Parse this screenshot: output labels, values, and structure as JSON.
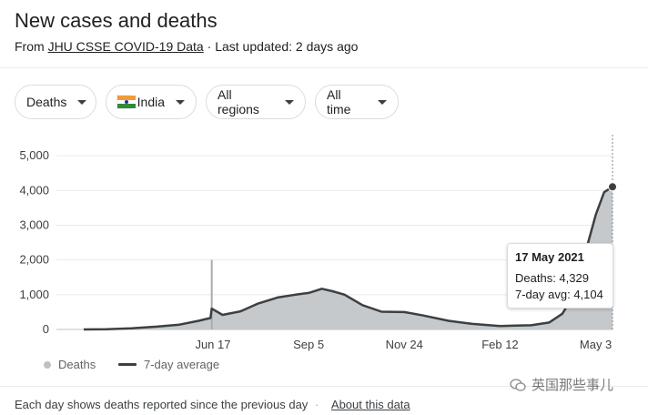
{
  "header": {
    "title": "New cases and deaths",
    "source_prefix": "From",
    "source_link": "JHU CSSE COVID-19 Data",
    "separator": "·",
    "last_updated": "Last updated: 2 days ago"
  },
  "filters": {
    "metric": "Deaths",
    "country": "India",
    "region": "All regions",
    "time_range": "All time"
  },
  "chart_data": {
    "type": "bar",
    "title": "",
    "xlabel": "",
    "ylabel": "",
    "ylim": [
      0,
      5500
    ],
    "y_ticks": [
      0,
      1000,
      2000,
      3000,
      4000,
      5000
    ],
    "y_tick_labels": [
      "0",
      "1,000",
      "2,000",
      "3,000",
      "4,000",
      "5,000"
    ],
    "x_tick_labels": [
      "Jun 17",
      "Sep 5",
      "Nov 24",
      "Feb 12",
      "May 3"
    ],
    "x_ticks": [
      "2020-06-17",
      "2020-09-05",
      "2020-11-24",
      "2021-02-12",
      "2021-05-03"
    ],
    "x_range": [
      "2020-03-01",
      "2021-05-17"
    ],
    "grid": true,
    "series": [
      {
        "name": "7-day average",
        "x": [
          "2020-03-01",
          "2020-03-20",
          "2020-04-10",
          "2020-05-01",
          "2020-05-20",
          "2020-06-05",
          "2020-06-15",
          "2020-06-16",
          "2020-06-25",
          "2020-07-10",
          "2020-07-25",
          "2020-08-10",
          "2020-08-25",
          "2020-09-05",
          "2020-09-16",
          "2020-09-25",
          "2020-10-05",
          "2020-10-20",
          "2020-11-05",
          "2020-11-24",
          "2020-12-10",
          "2020-12-31",
          "2021-01-20",
          "2021-02-12",
          "2021-02-25",
          "2021-03-10",
          "2021-03-25",
          "2021-04-05",
          "2021-04-15",
          "2021-04-25",
          "2021-05-03",
          "2021-05-10",
          "2021-05-17"
        ],
        "values": [
          0,
          5,
          35,
          80,
          140,
          250,
          330,
          600,
          420,
          520,
          750,
          920,
          1000,
          1050,
          1170,
          1100,
          1000,
          700,
          510,
          500,
          400,
          250,
          160,
          100,
          110,
          120,
          200,
          450,
          1000,
          2300,
          3300,
          3950,
          4104
        ]
      }
    ],
    "daily_spikes": {
      "name": "Deaths",
      "x": [
        "2020-06-16"
      ],
      "values": [
        2004
      ]
    },
    "highlight": {
      "date": "17 May 2021",
      "deaths": "Deaths: 4,329",
      "avg": "7-day avg: 4,104"
    }
  },
  "legend": {
    "daily": "Deaths",
    "avg": "7-day average"
  },
  "footer": {
    "note": "Each day shows deaths reported since the previous day",
    "separator": "·",
    "about_link": "About this data"
  },
  "watermark": {
    "text": "英国那些事儿"
  },
  "colors": {
    "area": "#c6c9cc",
    "line": "#3c4043",
    "grid": "#e8eaed"
  }
}
